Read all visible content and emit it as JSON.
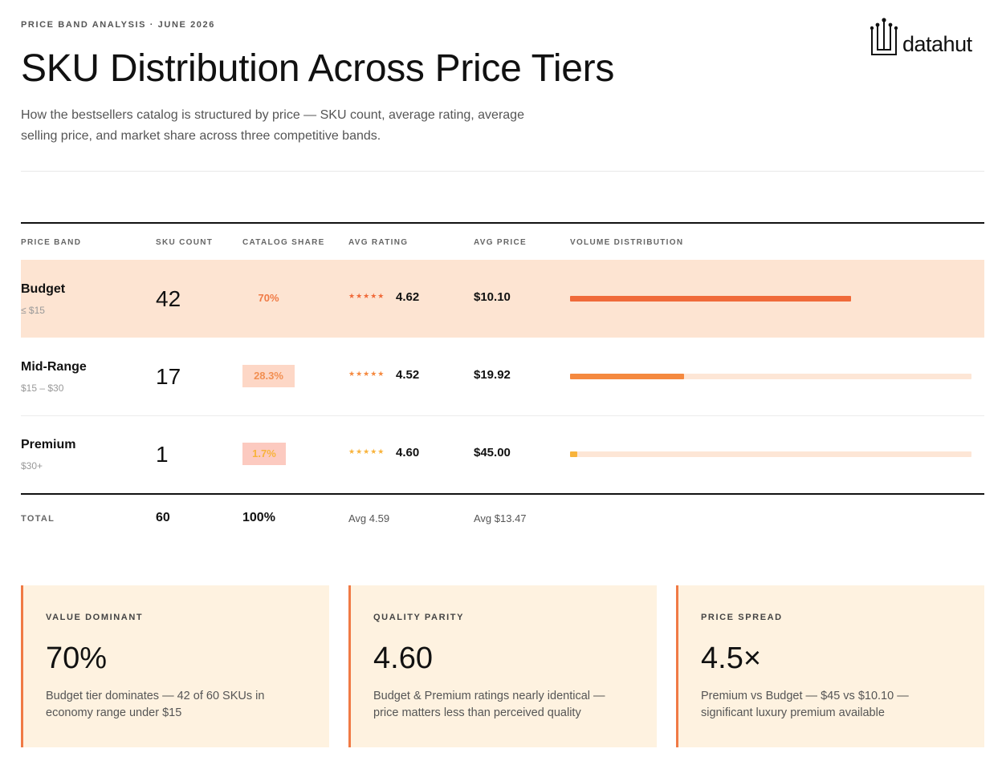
{
  "header": {
    "eyebrow": "PRICE BAND ANALYSIS · JUNE 2026",
    "title": "SKU Distribution Across Price Tiers",
    "subtitle": "How the bestsellers catalog is structured by price — SKU count, average rating, average selling price, and market share across three competitive bands.",
    "logo_text": "datahut",
    "logo_icon": "datahut-logo-icon"
  },
  "colors": {
    "accent": "#f07a45",
    "budget": "#f06a3a",
    "midrange": "#f5893f",
    "premium": "#f8b33b",
    "highlight_row": "#fde4d2",
    "card_bg": "#fef2e0",
    "track": "#fde6d6"
  },
  "chart_data": {
    "type": "table",
    "columns": [
      "PRICE BAND",
      "SKU COUNT",
      "CATALOG SHARE",
      "AVG RATING",
      "AVG PRICE",
      "VOLUME DISTRIBUTION"
    ],
    "rows": [
      {
        "band": "Budget",
        "range": "≤ $15",
        "sku_count": "42",
        "share": "70%",
        "share_value": 70,
        "stars": "★★★★★",
        "rating": "4.62",
        "price": "$10.10",
        "volume_fraction": 0.7
      },
      {
        "band": "Mid-Range",
        "range": "$15 – $30",
        "sku_count": "17",
        "share": "28.3%",
        "share_value": 28.3,
        "stars": "★★★★★",
        "rating": "4.52",
        "price": "$19.92",
        "volume_fraction": 0.283
      },
      {
        "band": "Premium",
        "range": "$30+",
        "sku_count": "1",
        "share": "1.7%",
        "share_value": 1.7,
        "stars": "★★★★★",
        "rating": "4.60",
        "price": "$45.00",
        "volume_fraction": 0.017
      }
    ],
    "total": {
      "label": "TOTAL",
      "sku_count": "60",
      "share": "100%",
      "rating": "Avg 4.59",
      "price": "Avg $13.47"
    }
  },
  "cards": [
    {
      "label": "VALUE DOMINANT",
      "value": "70%",
      "desc": "Budget tier dominates — 42 of 60 SKUs in economy range under $15"
    },
    {
      "label": "QUALITY PARITY",
      "value": "4.60",
      "desc": "Budget & Premium ratings nearly identical — price matters less than perceived quality"
    },
    {
      "label": "PRICE SPREAD",
      "value": "4.5×",
      "desc": "Premium vs Budget — $45 vs $10.10 — significant luxury premium available"
    }
  ]
}
